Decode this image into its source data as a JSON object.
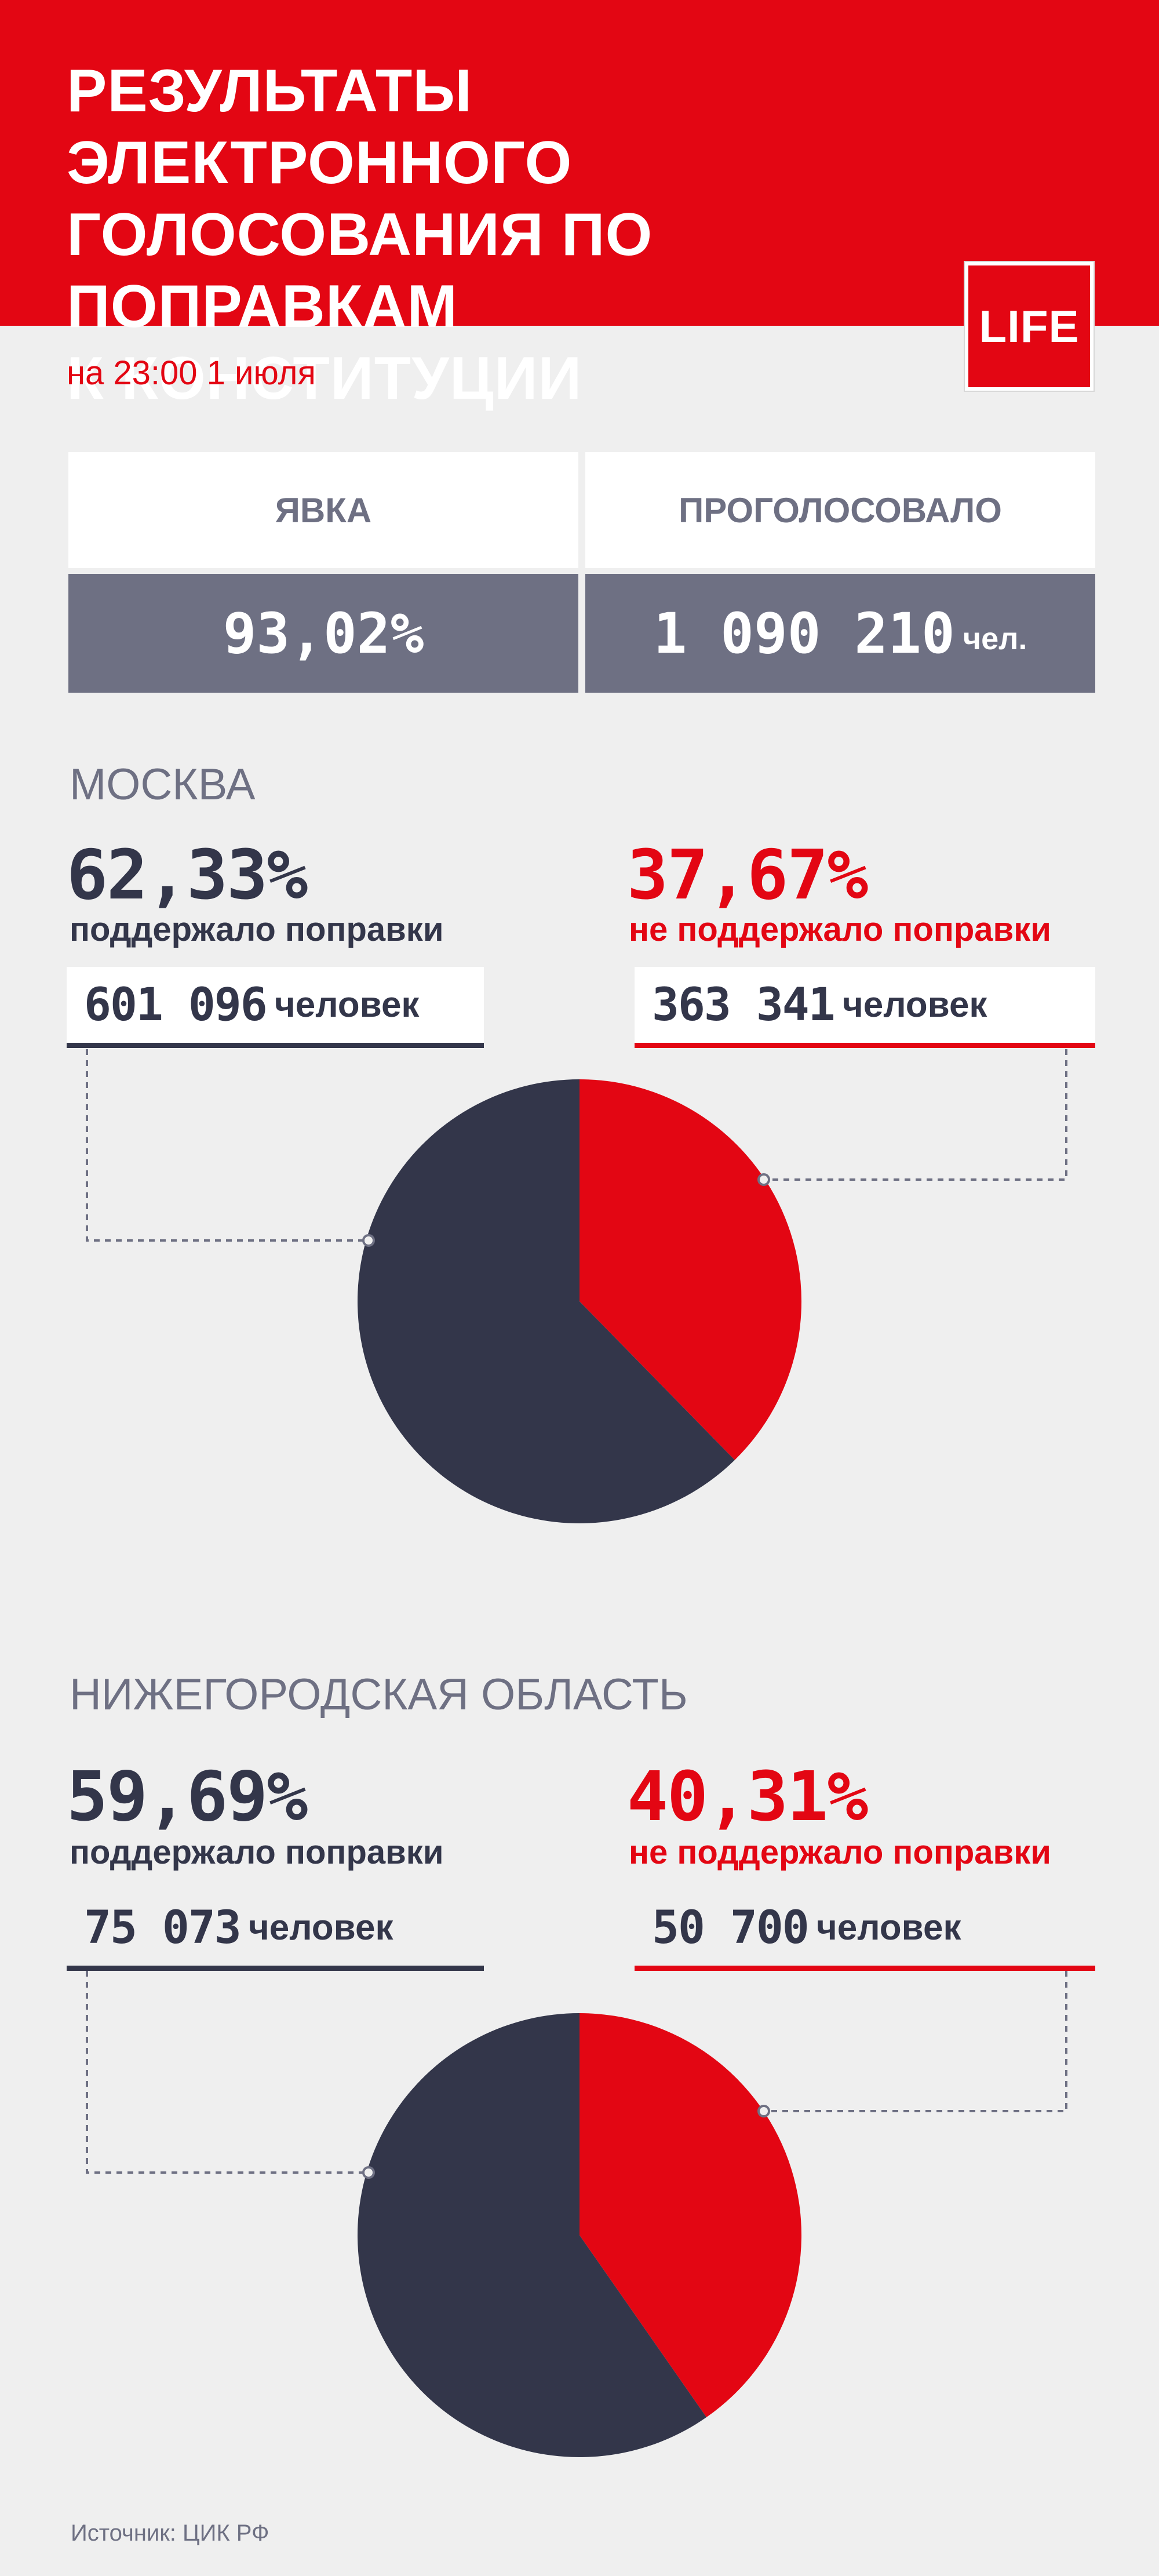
{
  "header": {
    "title_lines": [
      "Результаты электронного",
      "голосования по поправкам",
      "к конституции"
    ],
    "logo": "LIFE",
    "subtitle": "на 23:00 1 июля"
  },
  "summary": {
    "turnout_label": "Явка",
    "turnout_value": "93,02%",
    "voted_label": "Проголосовало",
    "voted_value": "1 090 210",
    "voted_unit": "чел."
  },
  "colors": {
    "support": "#33364a",
    "against": "#e30613",
    "accent": "#e30613"
  },
  "regions": [
    {
      "title": "Москва",
      "support_pct": "62,33%",
      "support_label": "поддержало поправки",
      "support_count": "601 096",
      "against_pct": "37,67%",
      "against_label": "не поддержало поправки",
      "against_count": "363 341",
      "count_unit": "человек"
    },
    {
      "title": "Нижегородская область",
      "support_pct": "59,69%",
      "support_label": "поддержало поправки",
      "support_count": "75 073",
      "against_pct": "40,31%",
      "against_label": "не поддержало поправки",
      "against_count": "50 700",
      "count_unit": "человек"
    }
  ],
  "chart_data": [
    {
      "type": "pie",
      "title": "Москва",
      "categories": [
        "поддержало поправки",
        "не поддержало поправки"
      ],
      "values": [
        62.33,
        37.67
      ],
      "colors": [
        "#33364a",
        "#e30613"
      ]
    },
    {
      "type": "pie",
      "title": "Нижегородская область",
      "categories": [
        "поддержало поправки",
        "не поддержало поправки"
      ],
      "values": [
        59.69,
        40.31
      ],
      "colors": [
        "#33364a",
        "#e30613"
      ]
    }
  ],
  "footer": {
    "source": "Источник: ЦИК РФ"
  }
}
